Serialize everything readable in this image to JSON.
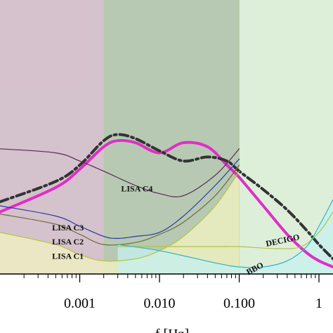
{
  "chart_data": {
    "type": "line",
    "title": "",
    "xlabel": "f [Hz]",
    "ylabel": "",
    "xscale": "log",
    "xlim": [
      0.0001,
      1.5
    ],
    "ylim": [
      0,
      1
    ],
    "x_ticks": [
      {
        "value": 0.001,
        "label": "0.001"
      },
      {
        "value": 0.01,
        "label": "0.010"
      },
      {
        "value": 0.1,
        "label": "0.100"
      },
      {
        "value": 1,
        "label": "1"
      }
    ],
    "bands": [
      {
        "x": [
          0.0001,
          0.002
        ],
        "color": "#cdb7c3"
      },
      {
        "x": [
          0.002,
          0.1
        ],
        "color": "#aabfa5"
      },
      {
        "x": [
          0.1,
          1.5
        ],
        "color": "#d7ecd2"
      }
    ],
    "series": [
      {
        "name": "",
        "color": "#e02ec8",
        "style": "solid",
        "width": 4,
        "x": [
          0.0001,
          0.0005,
          0.001,
          0.002,
          0.003,
          0.005,
          0.01,
          0.02,
          0.04,
          0.07,
          0.1,
          0.2,
          0.4,
          0.7,
          1,
          1.5
        ],
        "y": [
          0.27,
          0.39,
          0.48,
          0.59,
          0.62,
          0.61,
          0.56,
          0.61,
          0.59,
          0.5,
          0.44,
          0.3,
          0.16,
          0.07,
          0.03,
          0.0
        ]
      },
      {
        "name": "",
        "color": "#333333",
        "style": "dashdot",
        "width": 4,
        "x": [
          0.0001,
          0.0005,
          0.001,
          0.002,
          0.003,
          0.005,
          0.01,
          0.02,
          0.04,
          0.07,
          0.1,
          0.2,
          0.4,
          0.7,
          1,
          1.5
        ],
        "y": [
          0.32,
          0.42,
          0.5,
          0.62,
          0.65,
          0.63,
          0.57,
          0.52,
          0.54,
          0.52,
          0.47,
          0.38,
          0.28,
          0.18,
          0.11,
          0.04
        ]
      },
      {
        "name": "LISA C4",
        "color": "#5a2a52",
        "style": "solid",
        "width": 1.2,
        "x": [
          0.0001,
          0.0005,
          0.001,
          0.002,
          0.005,
          0.01,
          0.02,
          0.05,
          0.1
        ],
        "y": [
          0.58,
          0.56,
          0.52,
          0.47,
          0.4,
          0.36,
          0.35,
          0.45,
          0.58
        ]
      },
      {
        "name": "LISA C3",
        "color": "#2a3aa0",
        "style": "solid",
        "width": 1.2,
        "x": [
          0.0001,
          0.0005,
          0.001,
          0.002,
          0.003,
          0.005,
          0.01,
          0.02,
          0.05,
          0.1
        ],
        "y": [
          0.3,
          0.25,
          0.2,
          0.15,
          0.14,
          0.15,
          0.17,
          0.25,
          0.4,
          0.53
        ]
      },
      {
        "name": "LISA C2",
        "color": "#6b6b3a",
        "style": "solid",
        "width": 1.2,
        "x": [
          0.0001,
          0.0005,
          0.001,
          0.002,
          0.005,
          0.01,
          0.02,
          0.05,
          0.1
        ],
        "y": [
          0.26,
          0.21,
          0.16,
          0.11,
          0.12,
          0.16,
          0.22,
          0.35,
          0.5
        ]
      },
      {
        "name": "LISA C1",
        "color": "#b9c23a",
        "style": "solid",
        "width": 1.2,
        "x": [
          0.0001,
          0.0005,
          0.001,
          0.002,
          0.005,
          0.01,
          0.02,
          0.05,
          0.1
        ],
        "y": [
          0.17,
          0.11,
          0.06,
          0.03,
          0.04,
          0.08,
          0.15,
          0.3,
          0.47
        ]
      },
      {
        "name": "DECIGO",
        "color": "#b5c24a",
        "style": "solid",
        "width": 1.2,
        "x": [
          0.003,
          0.01,
          0.05,
          0.1,
          0.3,
          0.6,
          1,
          1.5
        ],
        "y": [
          0.1,
          0.1,
          0.1,
          0.1,
          0.09,
          0.1,
          0.17,
          0.27
        ]
      },
      {
        "name": "BBO",
        "color": "#2ab5c8",
        "style": "solid",
        "width": 1.2,
        "x": [
          0.003,
          0.01,
          0.05,
          0.1,
          0.2,
          0.4,
          0.7,
          1,
          1.5
        ],
        "y": [
          0.11,
          0.08,
          0.02,
          0.0,
          0.0,
          0.03,
          0.1,
          0.2,
          0.33
        ]
      }
    ],
    "fills": [
      {
        "series": "LISA C1",
        "color": "#f3f3c2"
      },
      {
        "series": "BBO",
        "color": "#c5f0ef"
      }
    ],
    "annotations": [
      {
        "text": "LISA C4",
        "x": 0.0033,
        "y": 0.37
      },
      {
        "text": "LISA C3",
        "x": 0.00045,
        "y": 0.18
      },
      {
        "text": "LISA C2",
        "x": 0.00045,
        "y": 0.11
      },
      {
        "text": "LISA C1",
        "x": 0.00045,
        "y": 0.04
      },
      {
        "text": "DECIGO",
        "x": 0.22,
        "y": 0.1
      },
      {
        "text": "BBO",
        "x": 0.13,
        "y": -0.04
      }
    ]
  }
}
